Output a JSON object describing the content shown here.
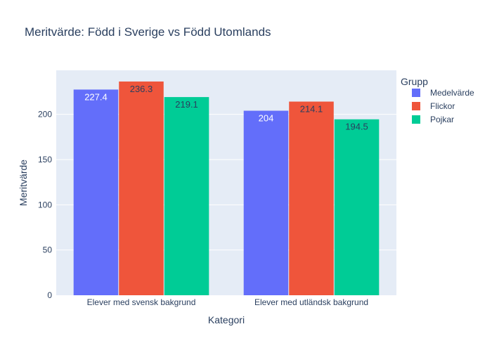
{
  "chart_data": {
    "type": "bar",
    "title": "Meritvärde: Född i Sverige vs Född Utomlands",
    "xlabel": "Kategori",
    "ylabel": "Meritvärde",
    "categories": [
      "Elever med svensk bakgrund",
      "Elever med utländsk bakgrund"
    ],
    "series": [
      {
        "name": "Medelvärde",
        "values": [
          227.4,
          204
        ],
        "labels": [
          "227.4",
          "204"
        ],
        "color": "#636efa",
        "label_color": "#ffffff"
      },
      {
        "name": "Flickor",
        "values": [
          236.3,
          214.1
        ],
        "labels": [
          "236.3",
          "214.1"
        ],
        "color": "#ef553b",
        "label_color": "#2a3f5f"
      },
      {
        "name": "Pojkar",
        "values": [
          219.1,
          194.5
        ],
        "labels": [
          "219.1",
          "194.5"
        ],
        "color": "#00cc96",
        "label_color": "#2a3f5f"
      }
    ],
    "ylim": [
      0,
      248.7
    ],
    "yticks": [
      0,
      50,
      100,
      150,
      200
    ],
    "ytick_labels": [
      "0",
      "50",
      "100",
      "150",
      "200"
    ],
    "legend": {
      "title": "Grupp",
      "position": "top-right"
    },
    "grid": true,
    "plot_bgcolor": "#e5ecf6",
    "text_color": "#2a3f5f"
  }
}
